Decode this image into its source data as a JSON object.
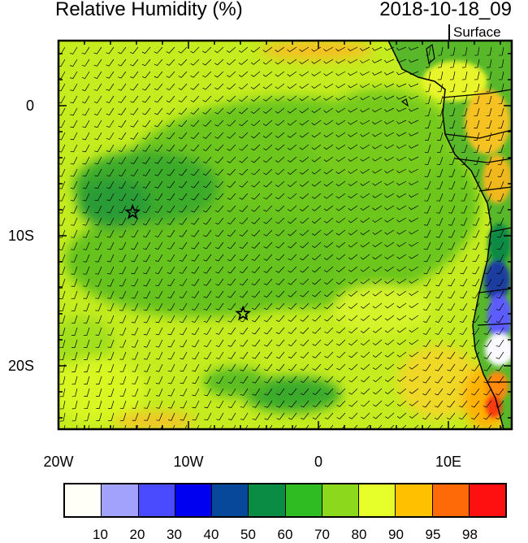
{
  "header": {
    "title": "Relative Humidity (%)",
    "datetime": "2018-10-18_09",
    "level": "Surface"
  },
  "axes": {
    "lat_labels": [
      "0",
      "10S",
      "20S"
    ],
    "lon_labels": [
      "20W",
      "10W",
      "0",
      "10E"
    ]
  },
  "colorbar": {
    "colors": [
      "#fffff8",
      "#a2a2fc",
      "#4a4aff",
      "#0000f0",
      "#08489b",
      "#0a8c45",
      "#2fbc22",
      "#8cd81c",
      "#e6ff2a",
      "#ffc000",
      "#ff6a08",
      "#ff1010"
    ],
    "labels": [
      "10",
      "20",
      "30",
      "40",
      "50",
      "60",
      "70",
      "80",
      "90",
      "95",
      "98"
    ]
  },
  "markers": [
    {
      "name": "station-star-1",
      "lat": -8.2,
      "lon": -14.3
    },
    {
      "name": "station-star-2",
      "lat": -16.0,
      "lon": -5.8
    }
  ]
}
